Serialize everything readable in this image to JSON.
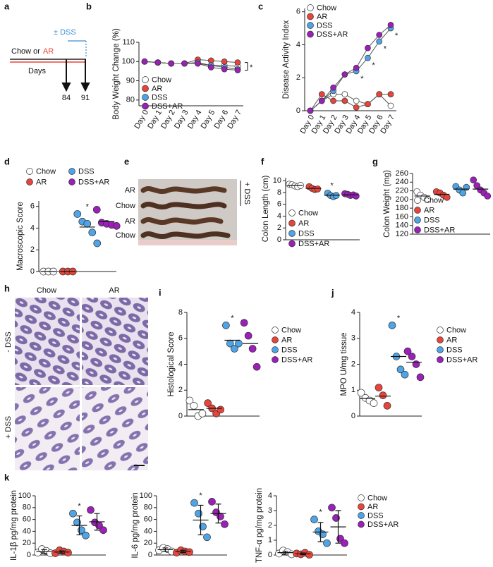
{
  "panels": {
    "a": {
      "label": "a",
      "treatment": "± DSS",
      "diet": "Chow or",
      "diet_alt": "AR",
      "axis": "Days",
      "days": [
        "84",
        "91"
      ]
    },
    "e": {
      "label": "e",
      "rows": [
        "AR",
        "Chow",
        "AR",
        "Chow"
      ],
      "treatment": "+ DSS"
    },
    "h": {
      "label": "h",
      "columns": [
        "Chow",
        "AR"
      ],
      "rows": [
        "- DSS",
        "+ DSS"
      ]
    }
  },
  "chart_data": [
    {
      "panel": "b",
      "type": "line",
      "ylabel": "Body Weight Change (%)",
      "categories": [
        "Day 0",
        "Day 1",
        "Day 2",
        "Day 3",
        "Day 4",
        "Day 5",
        "Day 6",
        "Day 7"
      ],
      "series": [
        {
          "name": "Chow",
          "color": "#ffffff",
          "values": [
            100,
            99.5,
            99,
            99,
            99,
            98,
            98,
            97.5
          ]
        },
        {
          "name": "AR",
          "color": "#e8443a",
          "values": [
            100,
            99.5,
            99,
            99,
            101,
            100.5,
            100,
            99.5
          ]
        },
        {
          "name": "DSS",
          "color": "#4ea4e6",
          "values": [
            100,
            99.5,
            99,
            99,
            99.5,
            98,
            97,
            96
          ]
        },
        {
          "name": "DSS+AR",
          "color": "#9b1fb8",
          "values": [
            100,
            99.5,
            99,
            99,
            99,
            97,
            96,
            95.5
          ]
        }
      ],
      "ylim": [
        77,
        110
      ],
      "yticks": [
        80,
        90,
        100,
        110
      ],
      "legend": "lower-left",
      "annotations": [
        "*"
      ]
    },
    {
      "panel": "c",
      "type": "line",
      "ylabel": "Disease Activity Index",
      "categories": [
        "Day 0",
        "Day 1",
        "Day 2",
        "Day 3",
        "Day 4",
        "Day 5",
        "Day 6",
        "Day 7"
      ],
      "series": [
        {
          "name": "Chow",
          "color": "#ffffff",
          "values": [
            0,
            0.6,
            1.0,
            1.0,
            0.6,
            0.4,
            1.0,
            0.3
          ]
        },
        {
          "name": "AR",
          "color": "#e8443a",
          "values": [
            0,
            1.0,
            0.6,
            0.6,
            0.2,
            0.4,
            1.0,
            1.0
          ]
        },
        {
          "name": "DSS",
          "color": "#4ea4e6",
          "values": [
            0,
            0.6,
            1.2,
            2.2,
            2.4,
            3.2,
            4.2,
            5.0
          ]
        },
        {
          "name": "DSS+AR",
          "color": "#9b1fb8",
          "values": [
            0,
            0.6,
            1.4,
            2.2,
            2.6,
            3.8,
            4.6,
            5.2
          ]
        }
      ],
      "ylim": [
        0,
        6.2
      ],
      "yticks": [
        0,
        2,
        4,
        6
      ],
      "legend": "upper-left",
      "annotations": [
        "*",
        "*",
        "*",
        "*"
      ]
    },
    {
      "panel": "d",
      "type": "dot",
      "ylabel": "Macroscopic Score",
      "series": [
        {
          "name": "Chow",
          "color": "#ffffff",
          "values": [
            0,
            0,
            0
          ],
          "mean": 0
        },
        {
          "name": "AR",
          "color": "#e8443a",
          "values": [
            0,
            0,
            0
          ],
          "mean": 0
        },
        {
          "name": "DSS",
          "color": "#4ea4e6",
          "values": [
            5.3,
            4.6,
            4.4,
            3.6,
            2.6
          ],
          "mean": 4.1
        },
        {
          "name": "DSS+AR",
          "color": "#9b1fb8",
          "values": [
            5.7,
            4.5,
            4.4,
            4.3,
            4.2
          ],
          "mean": 4.6
        }
      ],
      "ylim": [
        0,
        6.5
      ],
      "yticks": [
        0,
        2,
        4,
        6
      ],
      "legend": "top",
      "annotations": [
        "*"
      ]
    },
    {
      "panel": "f",
      "type": "dot",
      "ylabel": "Colon Length (cm)",
      "series": [
        {
          "name": "Chow",
          "color": "#ffffff",
          "values": [
            9.4,
            9.3,
            9.1,
            9.0,
            9.2
          ],
          "mean": 9.2
        },
        {
          "name": "AR",
          "color": "#e8443a",
          "values": [
            9.0,
            8.7,
            8.5,
            8.6
          ],
          "mean": 8.7
        },
        {
          "name": "DSS",
          "color": "#4ea4e6",
          "values": [
            7.9,
            7.5,
            7.3,
            7.5
          ],
          "mean": 7.55
        },
        {
          "name": "DSS+AR",
          "color": "#9b1fb8",
          "values": [
            7.8,
            7.7,
            7.5,
            7.6,
            7.4
          ],
          "mean": 7.6
        }
      ],
      "ylim": [
        0,
        10.5
      ],
      "yticks": [
        0,
        2,
        4,
        6,
        8,
        10
      ],
      "legend": "lower-left",
      "annotations": [
        "*"
      ]
    },
    {
      "panel": "g",
      "type": "dot",
      "ylabel": "Colon Weight (mg)",
      "series": [
        {
          "name": "Chow",
          "color": "#ffffff",
          "values": [
            218,
            210,
            205,
            200
          ],
          "mean": 208
        },
        {
          "name": "AR",
          "color": "#e8443a",
          "values": [
            218,
            215,
            210,
            205
          ],
          "mean": 212
        },
        {
          "name": "DSS",
          "color": "#4ea4e6",
          "values": [
            230,
            222,
            215,
            228
          ],
          "mean": 224
        },
        {
          "name": "DSS+AR",
          "color": "#9b1fb8",
          "values": [
            245,
            232,
            222,
            215,
            208
          ],
          "mean": 224
        }
      ],
      "ylim": [
        120,
        260
      ],
      "yticks": [
        120,
        140,
        160,
        180,
        200,
        220,
        240,
        260
      ],
      "legend": "lower-left"
    },
    {
      "panel": "i",
      "type": "dot",
      "ylabel": "Histological Score",
      "series": [
        {
          "name": "Chow",
          "color": "#ffffff",
          "values": [
            1.2,
            0.8,
            0,
            0.2
          ],
          "mean": 0.5
        },
        {
          "name": "AR",
          "color": "#e8443a",
          "values": [
            1.0,
            0.6,
            0.2,
            0.5
          ],
          "mean": 0.6
        },
        {
          "name": "DSS",
          "color": "#4ea4e6",
          "values": [
            7.0,
            5.6,
            5.2,
            5.6
          ],
          "mean": 5.85
        },
        {
          "name": "DSS+AR",
          "color": "#9b1fb8",
          "values": [
            7.2,
            6.2,
            5.2,
            3.8
          ],
          "mean": 5.6
        }
      ],
      "ylim": [
        0,
        8
      ],
      "yticks": [
        0,
        2,
        4,
        6,
        8
      ],
      "legend": "right",
      "annotations": [
        "*"
      ]
    },
    {
      "panel": "j",
      "type": "dot",
      "ylabel": "MPO U/mg tissue",
      "series": [
        {
          "name": "Chow",
          "color": "#ffffff",
          "values": [
            0.9,
            0.7,
            0.6,
            0.5
          ],
          "mean": 0.68
        },
        {
          "name": "AR",
          "color": "#e8443a",
          "values": [
            1.1,
            0.8,
            0.4
          ],
          "mean": 0.77
        },
        {
          "name": "DSS",
          "color": "#4ea4e6",
          "values": [
            3.5,
            2.3,
            1.8,
            1.6
          ],
          "mean": 2.3
        },
        {
          "name": "DSS+AR",
          "color": "#9b1fb8",
          "values": [
            2.5,
            2.3,
            2.0,
            1.5
          ],
          "mean": 2.08
        }
      ],
      "ylim": [
        0,
        4
      ],
      "yticks": [
        0,
        1,
        2,
        3,
        4
      ],
      "legend": "right",
      "annotations": [
        "*"
      ]
    },
    {
      "panel": "k",
      "type": "dot",
      "ylabel": "IL-1β pg/mg protein",
      "series": [
        {
          "color": "#ffffff",
          "values": [
            4,
            10,
            7,
            3
          ],
          "mean": 6,
          "sd": 3
        },
        {
          "color": "#e8443a",
          "values": [
            3,
            8,
            6,
            4
          ],
          "mean": 5,
          "sd": 2
        },
        {
          "color": "#4ea4e6",
          "values": [
            70,
            55,
            42,
            33
          ],
          "mean": 50,
          "sd": 16
        },
        {
          "color": "#9b1fb8",
          "values": [
            76,
            55,
            50,
            42
          ],
          "mean": 56,
          "sd": 14
        }
      ],
      "ylim": [
        0,
        100
      ],
      "yticks": [
        0,
        20,
        40,
        60,
        80,
        100
      ],
      "legend": "none",
      "annotations": [
        "*"
      ]
    },
    {
      "type": "dot",
      "ylabel": "IL-6 pg/mg protein",
      "series": [
        {
          "color": "#ffffff",
          "values": [
            8,
            12,
            10,
            6
          ],
          "mean": 9,
          "sd": 3
        },
        {
          "color": "#e8443a",
          "values": [
            4,
            8,
            6,
            5
          ],
          "mean": 6,
          "sd": 2
        },
        {
          "color": "#4ea4e6",
          "values": [
            88,
            70,
            48,
            30
          ],
          "mean": 59,
          "sd": 25
        },
        {
          "color": "#9b1fb8",
          "values": [
            90,
            72,
            65,
            52
          ],
          "mean": 70,
          "sd": 16
        }
      ],
      "ylim": [
        0,
        100
      ],
      "yticks": [
        0,
        20,
        40,
        60,
        80,
        100
      ],
      "legend": "none",
      "annotations": [
        "*"
      ]
    },
    {
      "type": "dot",
      "ylabel": "TNF-α pg/mg protein",
      "series": [
        {
          "name": "Chow",
          "color": "#ffffff",
          "values": [
            0.1,
            0.3,
            0.2,
            0.05
          ],
          "mean": 0.16,
          "sd": 0.1
        },
        {
          "name": "AR",
          "color": "#e8443a",
          "values": [
            0.1,
            0.05,
            0.15,
            0.02
          ],
          "mean": 0.08,
          "sd": 0.06
        },
        {
          "name": "DSS",
          "color": "#4ea4e6",
          "values": [
            2.4,
            1.6,
            1.4,
            0.8
          ],
          "mean": 1.55,
          "sd": 0.65
        },
        {
          "name": "DSS+AR",
          "color": "#9b1fb8",
          "values": [
            3.2,
            2.5,
            1.1,
            0.8
          ],
          "mean": 1.9,
          "sd": 1.1
        }
      ],
      "ylim": [
        0,
        4
      ],
      "yticks": [
        0,
        1,
        2,
        3,
        4
      ],
      "legend": "right",
      "annotations": [
        "*"
      ]
    }
  ]
}
